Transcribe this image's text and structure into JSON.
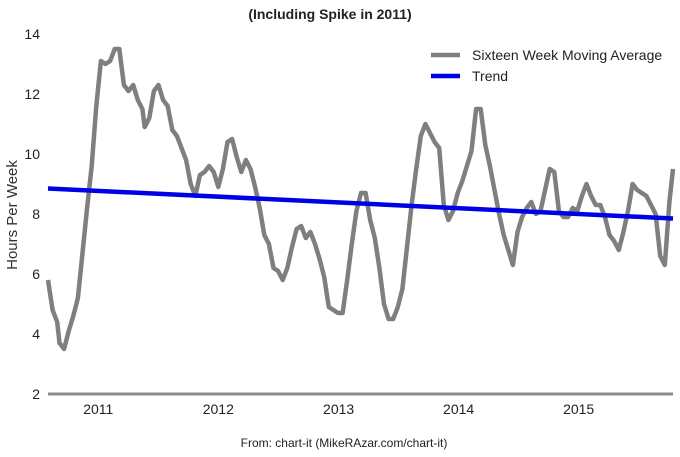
{
  "colors": {
    "moving_average": "#7f7f7f",
    "trend": "#0000e6",
    "baseline": "#8c8c8c",
    "background": "#ffffff"
  },
  "chart_data": {
    "type": "line",
    "title": "(Including Spike in 2011)",
    "xlabel": "",
    "ylabel": "Hours Per Week",
    "xlim": [
      "2010-08-01",
      "2015-10-15"
    ],
    "ylim": [
      2,
      14
    ],
    "x_ticks": [
      "2011",
      "2012",
      "2013",
      "2014",
      "2015"
    ],
    "y_ticks": [
      2,
      4,
      6,
      8,
      10,
      12,
      14
    ],
    "grid": false,
    "legend": "top-right",
    "source_note": "From: chart-it (MikeRAzar.com/chart-it)",
    "series": [
      {
        "name": "Sixteen Week Moving Average",
        "color": "#7f7f7f",
        "points": [
          [
            "2010-08-01",
            5.8
          ],
          [
            "2010-08-15",
            4.8
          ],
          [
            "2010-08-29",
            4.4
          ],
          [
            "2010-09-05",
            3.7
          ],
          [
            "2010-09-19",
            3.5
          ],
          [
            "2010-10-03",
            4.1
          ],
          [
            "2010-10-17",
            4.6
          ],
          [
            "2010-10-31",
            5.2
          ],
          [
            "2010-11-14",
            6.7
          ],
          [
            "2010-11-28",
            8.2
          ],
          [
            "2010-12-12",
            9.6
          ],
          [
            "2010-12-26",
            11.6
          ],
          [
            "2011-01-09",
            13.1
          ],
          [
            "2011-01-23",
            13.0
          ],
          [
            "2011-02-06",
            13.1
          ],
          [
            "2011-02-20",
            13.5
          ],
          [
            "2011-03-06",
            13.5
          ],
          [
            "2011-03-20",
            12.3
          ],
          [
            "2011-04-03",
            12.1
          ],
          [
            "2011-04-17",
            12.3
          ],
          [
            "2011-05-01",
            11.8
          ],
          [
            "2011-05-15",
            11.5
          ],
          [
            "2011-05-22",
            10.9
          ],
          [
            "2011-06-05",
            11.2
          ],
          [
            "2011-06-19",
            12.1
          ],
          [
            "2011-07-03",
            12.3
          ],
          [
            "2011-07-17",
            11.8
          ],
          [
            "2011-07-31",
            11.6
          ],
          [
            "2011-08-14",
            10.8
          ],
          [
            "2011-08-28",
            10.6
          ],
          [
            "2011-09-11",
            10.2
          ],
          [
            "2011-09-25",
            9.8
          ],
          [
            "2011-10-09",
            9.0
          ],
          [
            "2011-10-23",
            8.6
          ],
          [
            "2011-11-06",
            9.3
          ],
          [
            "2011-11-20",
            9.4
          ],
          [
            "2011-12-04",
            9.6
          ],
          [
            "2011-12-18",
            9.4
          ],
          [
            "2012-01-01",
            8.9
          ],
          [
            "2012-01-15",
            9.5
          ],
          [
            "2012-01-29",
            10.4
          ],
          [
            "2012-02-12",
            10.5
          ],
          [
            "2012-02-26",
            9.9
          ],
          [
            "2012-03-11",
            9.4
          ],
          [
            "2012-03-25",
            9.8
          ],
          [
            "2012-04-08",
            9.5
          ],
          [
            "2012-04-22",
            8.9
          ],
          [
            "2012-05-06",
            8.2
          ],
          [
            "2012-05-20",
            7.3
          ],
          [
            "2012-06-03",
            7.0
          ],
          [
            "2012-06-17",
            6.2
          ],
          [
            "2012-07-01",
            6.1
          ],
          [
            "2012-07-15",
            5.8
          ],
          [
            "2012-07-29",
            6.2
          ],
          [
            "2012-08-12",
            6.9
          ],
          [
            "2012-08-26",
            7.5
          ],
          [
            "2012-09-09",
            7.6
          ],
          [
            "2012-09-23",
            7.2
          ],
          [
            "2012-10-07",
            7.4
          ],
          [
            "2012-10-21",
            7.0
          ],
          [
            "2012-11-04",
            6.5
          ],
          [
            "2012-11-18",
            5.9
          ],
          [
            "2012-12-02",
            4.9
          ],
          [
            "2012-12-16",
            4.8
          ],
          [
            "2012-12-30",
            4.7
          ],
          [
            "2013-01-13",
            4.7
          ],
          [
            "2013-01-27",
            5.8
          ],
          [
            "2013-02-10",
            7.0
          ],
          [
            "2013-02-24",
            8.1
          ],
          [
            "2013-03-10",
            8.7
          ],
          [
            "2013-03-24",
            8.7
          ],
          [
            "2013-04-07",
            7.8
          ],
          [
            "2013-04-21",
            7.2
          ],
          [
            "2013-05-05",
            6.2
          ],
          [
            "2013-05-19",
            5.0
          ],
          [
            "2013-06-02",
            4.5
          ],
          [
            "2013-06-16",
            4.5
          ],
          [
            "2013-06-30",
            4.9
          ],
          [
            "2013-07-14",
            5.5
          ],
          [
            "2013-07-28",
            6.9
          ],
          [
            "2013-08-11",
            8.3
          ],
          [
            "2013-08-25",
            9.5
          ],
          [
            "2013-09-08",
            10.6
          ],
          [
            "2013-09-22",
            11.0
          ],
          [
            "2013-10-06",
            10.7
          ],
          [
            "2013-10-20",
            10.4
          ],
          [
            "2013-11-03",
            10.2
          ],
          [
            "2013-11-17",
            8.3
          ],
          [
            "2013-12-01",
            7.8
          ],
          [
            "2013-12-15",
            8.1
          ],
          [
            "2013-12-29",
            8.7
          ],
          [
            "2014-01-12",
            9.1
          ],
          [
            "2014-01-26",
            9.6
          ],
          [
            "2014-02-09",
            10.1
          ],
          [
            "2014-02-23",
            11.5
          ],
          [
            "2014-03-09",
            11.5
          ],
          [
            "2014-03-23",
            10.3
          ],
          [
            "2014-04-06",
            9.6
          ],
          [
            "2014-04-20",
            8.8
          ],
          [
            "2014-05-04",
            8.0
          ],
          [
            "2014-05-18",
            7.3
          ],
          [
            "2014-06-01",
            6.8
          ],
          [
            "2014-06-15",
            6.3
          ],
          [
            "2014-06-29",
            7.4
          ],
          [
            "2014-07-13",
            7.9
          ],
          [
            "2014-07-27",
            8.2
          ],
          [
            "2014-08-10",
            8.4
          ],
          [
            "2014-08-24",
            8.0
          ],
          [
            "2014-09-07",
            8.1
          ],
          [
            "2014-09-21",
            8.8
          ],
          [
            "2014-10-05",
            9.5
          ],
          [
            "2014-10-19",
            9.4
          ],
          [
            "2014-11-02",
            8.1
          ],
          [
            "2014-11-16",
            7.9
          ],
          [
            "2014-11-30",
            7.9
          ],
          [
            "2014-12-14",
            8.2
          ],
          [
            "2014-12-28",
            8.1
          ],
          [
            "2015-01-11",
            8.6
          ],
          [
            "2015-01-25",
            9.0
          ],
          [
            "2015-02-08",
            8.6
          ],
          [
            "2015-02-22",
            8.3
          ],
          [
            "2015-03-08",
            8.3
          ],
          [
            "2015-03-22",
            7.9
          ],
          [
            "2015-04-05",
            7.3
          ],
          [
            "2015-04-19",
            7.1
          ],
          [
            "2015-05-03",
            6.8
          ],
          [
            "2015-05-17",
            7.4
          ],
          [
            "2015-05-31",
            8.1
          ],
          [
            "2015-06-14",
            9.0
          ],
          [
            "2015-06-28",
            8.8
          ],
          [
            "2015-07-12",
            8.7
          ],
          [
            "2015-07-26",
            8.6
          ],
          [
            "2015-08-09",
            8.3
          ],
          [
            "2015-08-23",
            8.0
          ],
          [
            "2015-09-06",
            6.6
          ],
          [
            "2015-09-20",
            6.3
          ],
          [
            "2015-10-04",
            8.4
          ],
          [
            "2015-10-15",
            9.5
          ]
        ]
      },
      {
        "name": "Trend",
        "color": "#0000e6",
        "points": [
          [
            "2010-08-01",
            8.85
          ],
          [
            "2015-10-15",
            7.85
          ]
        ]
      }
    ]
  }
}
